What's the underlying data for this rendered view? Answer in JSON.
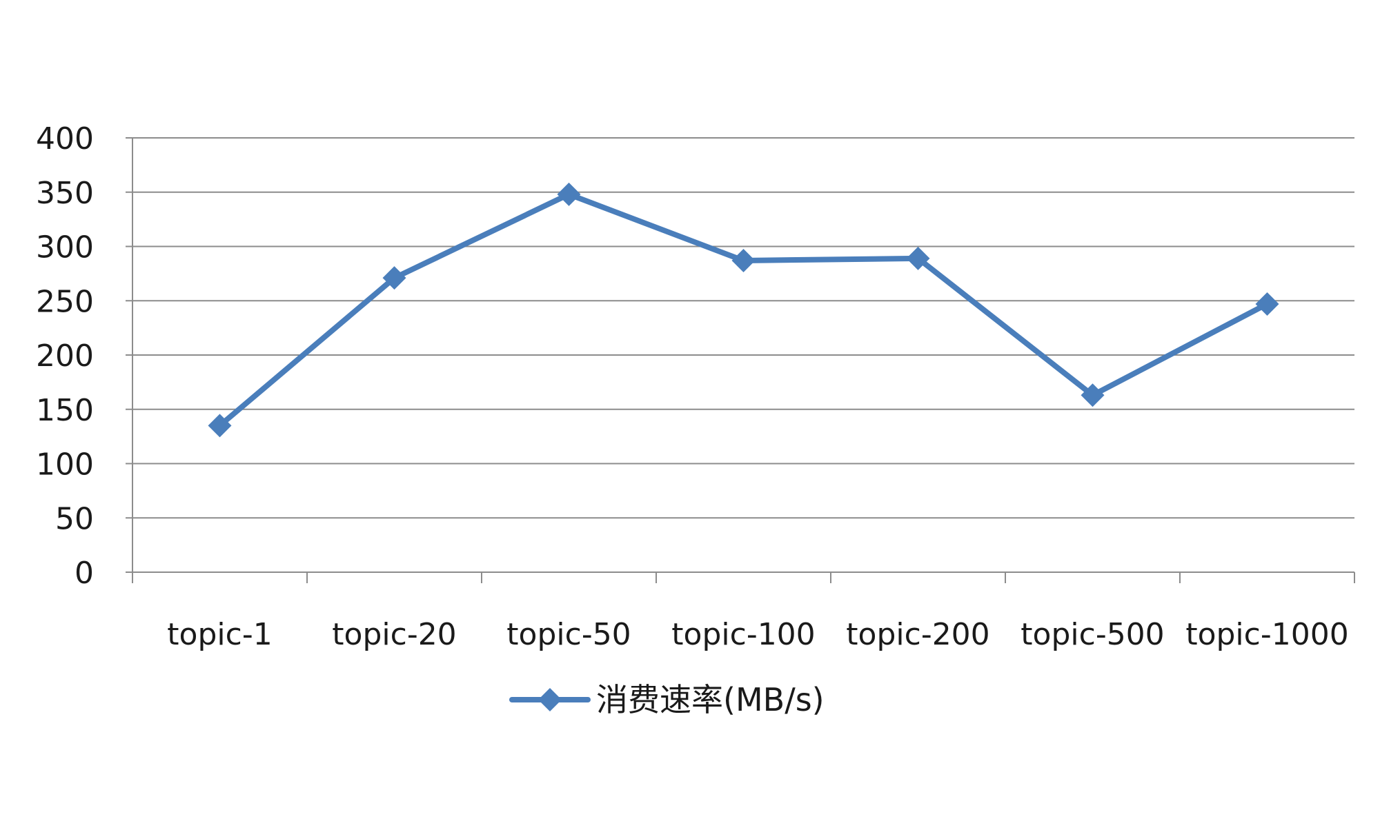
{
  "chart_data": {
    "type": "line",
    "categories": [
      "topic-1",
      "topic-20",
      "topic-50",
      "topic-100",
      "topic-200",
      "topic-500",
      "topic-1000"
    ],
    "series": [
      {
        "name": "消费速率(MB/s)",
        "values": [
          135,
          271,
          348,
          287,
          289,
          163,
          247
        ],
        "color": "#4a7ebb",
        "marker": "diamond"
      }
    ],
    "y_ticks": [
      "0",
      "50",
      "100",
      "150",
      "200",
      "250",
      "300",
      "350",
      "400"
    ],
    "ylim": [
      0,
      400
    ],
    "grid": "horizontal",
    "legend_position": "bottom",
    "colors": {
      "line": "#4a7ebb",
      "grid": "#8c8c8c",
      "axis": "#8c8c8c",
      "text": "#1a1a1a"
    }
  }
}
